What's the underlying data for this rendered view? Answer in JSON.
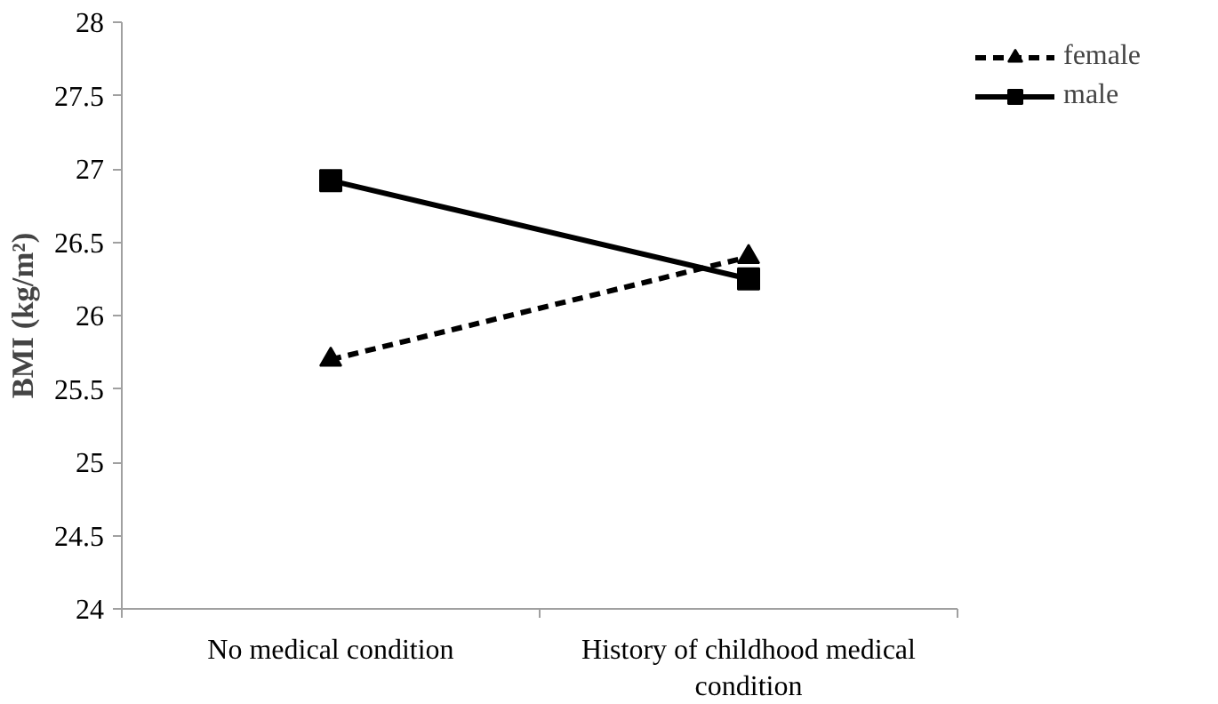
{
  "chart_data": {
    "type": "line",
    "ylabel": "BMI (kg/m²)",
    "categories": [
      "No medical condition",
      "History of childhood medical condition"
    ],
    "series": [
      {
        "name": "female",
        "color": "#000000",
        "values": [
          25.7,
          26.4
        ],
        "marker": "triangle",
        "line_style": "dashed"
      },
      {
        "name": "male",
        "color": "#000000",
        "values": [
          26.92,
          26.25
        ],
        "marker": "square",
        "line_style": "solid"
      }
    ],
    "ylim": [
      24,
      28
    ],
    "yticks": [
      24,
      24.5,
      25,
      25.5,
      26,
      26.5,
      27,
      27.5,
      28
    ],
    "grid": false,
    "legend": "top right"
  }
}
